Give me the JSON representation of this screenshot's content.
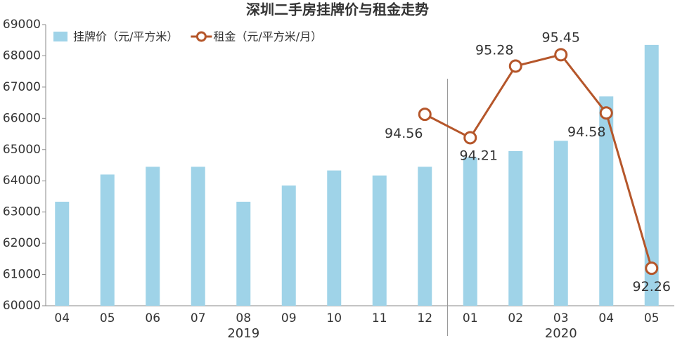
{
  "chart_data": {
    "type": "bar-line",
    "title": "深圳二手房挂牌价与租金走势",
    "categories": [
      "04",
      "05",
      "06",
      "07",
      "08",
      "09",
      "10",
      "11",
      "12",
      "01",
      "02",
      "03",
      "04",
      "05"
    ],
    "groups": [
      {
        "label": "2019",
        "count": 9
      },
      {
        "label": "2020",
        "count": 5
      }
    ],
    "series": [
      {
        "name": "挂牌价（元/平方米）",
        "type": "bar",
        "color": "#9fd3e8",
        "values": [
          63330,
          64200,
          64450,
          64450,
          63330,
          63850,
          64330,
          64170,
          64450,
          64750,
          64950,
          65280,
          66700,
          68350
        ]
      },
      {
        "name": "租金（元/平方米/月）",
        "type": "line",
        "axis": "y2",
        "color": "#b5562a",
        "values": [
          null,
          null,
          null,
          null,
          null,
          null,
          null,
          null,
          94.56,
          94.21,
          95.28,
          95.45,
          94.58,
          92.26
        ]
      }
    ],
    "ylim": [
      60000,
      69000
    ],
    "yticks": [
      60000,
      61000,
      62000,
      63000,
      64000,
      65000,
      66000,
      67000,
      68000,
      69000
    ],
    "y2lim": [
      91.7,
      95.9
    ]
  }
}
